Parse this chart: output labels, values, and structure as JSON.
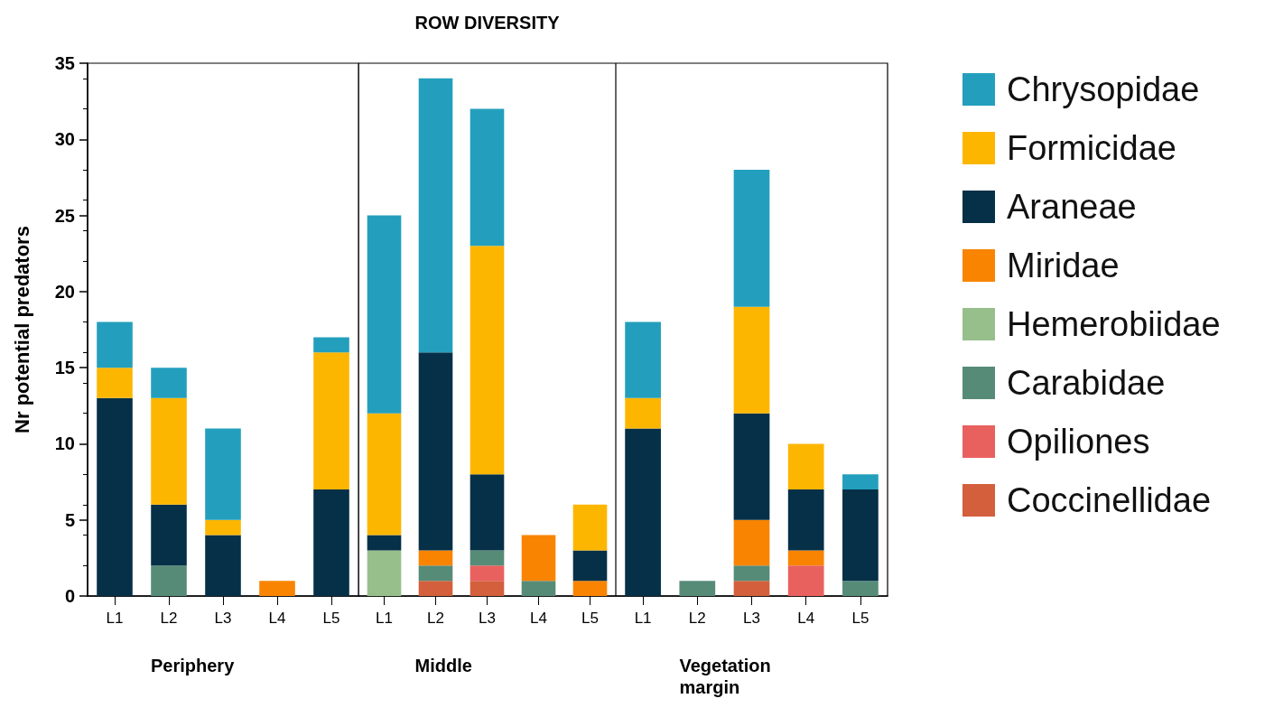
{
  "chart_data": [
    {
      "type": "bar",
      "ylabel": "Nr potential predators",
      "xlabel": "Periphery",
      "categories": [
        "L1",
        "L2",
        "L3",
        "L4",
        "L5"
      ],
      "stacked": true,
      "ylim": [
        0,
        35
      ],
      "yticks": [
        0,
        5,
        10,
        15,
        20,
        25,
        30,
        35
      ],
      "legend": false,
      "series": [
        {
          "color": "#d35f3c",
          "values": [
            0,
            0,
            0,
            0,
            0
          ]
        },
        {
          "color": "#e8615f",
          "values": [
            0,
            0,
            0,
            0,
            0
          ]
        },
        {
          "color": "#568b78",
          "values": [
            0,
            2,
            0,
            0,
            0
          ]
        },
        {
          "color": "#97bf8c",
          "values": [
            0,
            0,
            0,
            0,
            0
          ]
        },
        {
          "color": "#f98401",
          "values": [
            0,
            0,
            0,
            1,
            0
          ]
        },
        {
          "color": "#053047",
          "values": [
            13,
            4,
            4,
            0,
            7
          ]
        },
        {
          "color": "#fdb600",
          "values": [
            2,
            7,
            1,
            0,
            9
          ]
        },
        {
          "color": "#239fbd",
          "values": [
            3,
            2,
            6,
            0,
            1
          ]
        }
      ]
    },
    {
      "type": "bar",
      "title": "ROW DIVERSITY",
      "xlabel": "Middle",
      "categories": [
        "L1",
        "L2",
        "L3",
        "L4",
        "L5"
      ],
      "stacked": true,
      "ylim": [
        0,
        35
      ],
      "yticks": [
        0,
        5,
        10,
        15,
        20,
        25,
        30,
        35
      ],
      "tick_labels": "x",
      "legend": false,
      "series": [
        {
          "color": "#d35f3c",
          "values": [
            0,
            1,
            1,
            0,
            0
          ]
        },
        {
          "color": "#e8615f",
          "values": [
            0,
            0,
            1,
            0,
            0
          ]
        },
        {
          "color": "#568b78",
          "values": [
            0,
            1,
            1,
            1,
            0
          ]
        },
        {
          "color": "#97bf8c",
          "values": [
            3,
            0,
            0,
            0,
            0
          ]
        },
        {
          "color": "#f98401",
          "values": [
            0,
            1,
            0,
            3,
            1
          ]
        },
        {
          "color": "#053047",
          "values": [
            1,
            13,
            5,
            0,
            2
          ]
        },
        {
          "color": "#fdb600",
          "values": [
            8,
            0,
            15,
            0,
            3
          ]
        },
        {
          "color": "#239fbd",
          "values": [
            13,
            18,
            9,
            0,
            0
          ]
        }
      ]
    },
    {
      "type": "bar",
      "xlabel": "Vegetation margin",
      "categories": [
        "L1",
        "L2",
        "L3",
        "L4",
        "L5"
      ],
      "stacked": true,
      "ylim": [
        0,
        35
      ],
      "yticks": [
        0,
        5,
        10,
        15,
        20,
        25,
        30,
        35
      ],
      "tick_labels": "x",
      "legend": "right",
      "series": [
        {
          "name": "Coccinellidae",
          "color": "#d35f3c",
          "values": [
            0,
            0,
            1,
            0,
            0
          ]
        },
        {
          "name": "Opiliones",
          "color": "#e8615f",
          "values": [
            0,
            0,
            0,
            2,
            0
          ]
        },
        {
          "name": "Carabidae",
          "color": "#568b78",
          "values": [
            0,
            1,
            1,
            0,
            1
          ]
        },
        {
          "name": "Hemerobiidae",
          "color": "#97bf8c",
          "values": [
            0,
            0,
            0,
            0,
            0
          ]
        },
        {
          "name": "Miridae",
          "color": "#f98401",
          "values": [
            0,
            0,
            3,
            1,
            0
          ]
        },
        {
          "name": "Araneae",
          "color": "#053047",
          "values": [
            11,
            0,
            7,
            4,
            6
          ]
        },
        {
          "name": "Formicidae",
          "color": "#fdb600",
          "values": [
            2,
            0,
            7,
            3,
            0
          ]
        },
        {
          "name": "Chrysopidae",
          "color": "#239fbd",
          "values": [
            5,
            0,
            9,
            0,
            1
          ]
        }
      ]
    }
  ]
}
